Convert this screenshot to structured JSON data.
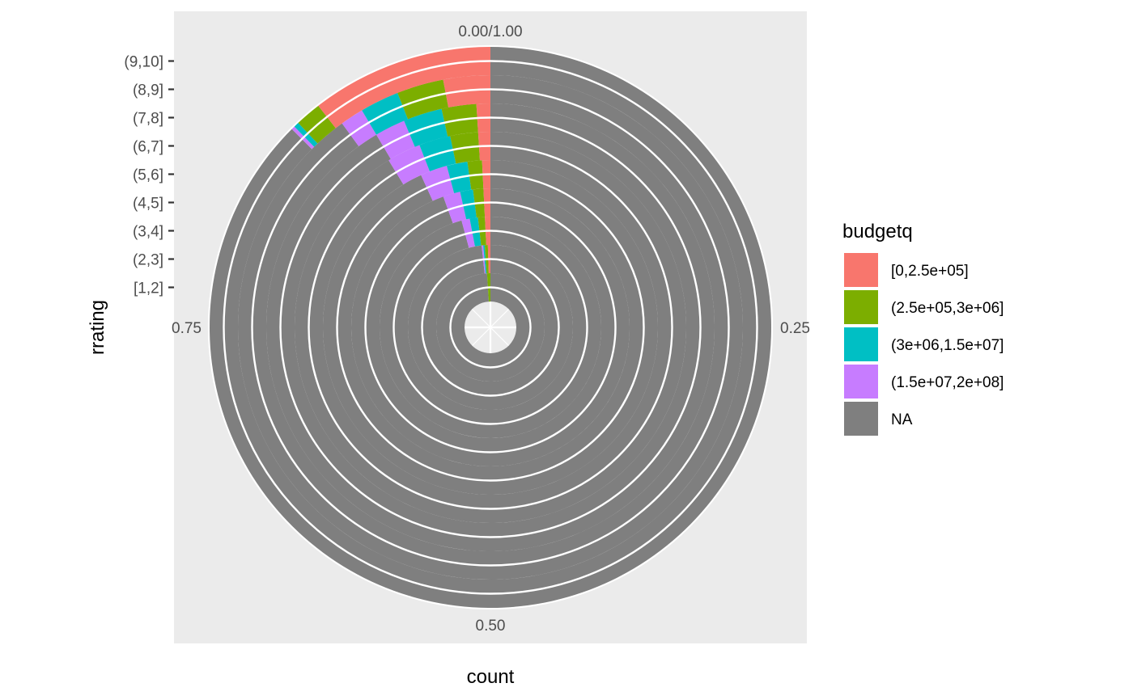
{
  "chart_data": {
    "type": "bar",
    "coord": "polar",
    "position": "fill",
    "xlabel": "count",
    "ylabel": "rrating",
    "theta_ticks": [
      "0.00/1.00",
      "0.25",
      "0.50",
      "0.75"
    ],
    "theta_tick_values": [
      0,
      0.25,
      0.5,
      0.75
    ],
    "categories": [
      "[1,2]",
      "(2,3]",
      "(3,4]",
      "(4,5]",
      "(5,6]",
      "(6,7]",
      "(7,8]",
      "(8,9]",
      "(9,10]"
    ],
    "legend": {
      "title": "budgetq",
      "position": "right"
    },
    "series": [
      {
        "name": "[0,2.5e+05]",
        "color": "#F8766D",
        "values": [
          0.0,
          0.005,
          0.008,
          0.008,
          0.008,
          0.01,
          0.01,
          0.03,
          0.105
        ]
      },
      {
        "name": "(2.5e+05,3e+06]",
        "color": "#7CAE00",
        "values": [
          0.01,
          0.006,
          0.01,
          0.012,
          0.014,
          0.023,
          0.025,
          0.03,
          0.015
        ]
      },
      {
        "name": "(3e+06,1.5e+07]",
        "color": "#00BFC4",
        "values": [
          0.0,
          0.003,
          0.012,
          0.015,
          0.02,
          0.026,
          0.028,
          0.025,
          0.003
        ]
      },
      {
        "name": "(1.5e+07,2e+08]",
        "color": "#C77CFF",
        "values": [
          0.0,
          0.003,
          0.012,
          0.02,
          0.026,
          0.028,
          0.022,
          0.015,
          0.002
        ]
      },
      {
        "name": "NA",
        "color": "#7F7F7F",
        "values": [
          0.99,
          0.983,
          0.958,
          0.945,
          0.932,
          0.913,
          0.915,
          0.9,
          0.875
        ]
      }
    ],
    "grid": true,
    "panel_background": "#EBEBEB",
    "grid_color": "#FFFFFF"
  }
}
